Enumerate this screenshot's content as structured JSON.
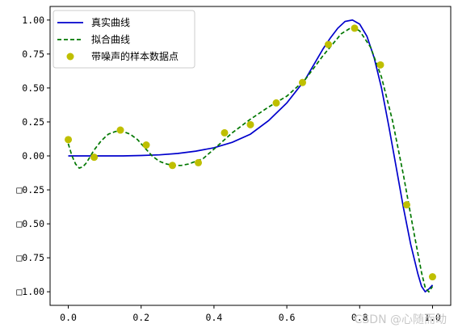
{
  "chart_data": {
    "type": "line",
    "title": "",
    "xlabel": "",
    "ylabel": "",
    "xlim": [
      -0.05,
      1.05
    ],
    "ylim": [
      -1.1,
      1.1
    ],
    "grid": false,
    "legend_position": "top-left",
    "x_ticks": [
      {
        "value": 0.0,
        "label": "0.0"
      },
      {
        "value": 0.2,
        "label": "0.2"
      },
      {
        "value": 0.4,
        "label": "0.4"
      },
      {
        "value": 0.6,
        "label": "0.6"
      },
      {
        "value": 0.8,
        "label": "0.8"
      },
      {
        "value": 1.0,
        "label": "1.0"
      }
    ],
    "y_ticks": [
      {
        "value": 1.0,
        "label": "1.00"
      },
      {
        "value": 0.75,
        "label": "0.75"
      },
      {
        "value": 0.5,
        "label": "0.50"
      },
      {
        "value": 0.25,
        "label": "0.25"
      },
      {
        "value": 0.0,
        "label": "0.00"
      },
      {
        "value": -0.25,
        "label": "□0.25"
      },
      {
        "value": -0.5,
        "label": "□0.50"
      },
      {
        "value": -0.75,
        "label": "□0.75"
      },
      {
        "value": -1.0,
        "label": "□1.00"
      }
    ],
    "series": [
      {
        "name": "真实曲线",
        "kind": "line",
        "style": "solid",
        "color": "#0000cc",
        "x": [
          0.0,
          0.05,
          0.1,
          0.15,
          0.2,
          0.25,
          0.3,
          0.35,
          0.4,
          0.45,
          0.5,
          0.55,
          0.6,
          0.65,
          0.7,
          0.72,
          0.74,
          0.76,
          0.78,
          0.8,
          0.82,
          0.84,
          0.86,
          0.88,
          0.9,
          0.92,
          0.94,
          0.96,
          0.97,
          0.98,
          0.99,
          1.0
        ],
        "y": [
          0.0,
          0.0,
          0.0,
          0.0,
          0.003,
          0.008,
          0.018,
          0.035,
          0.06,
          0.1,
          0.16,
          0.26,
          0.39,
          0.56,
          0.79,
          0.87,
          0.94,
          0.99,
          1.0,
          0.97,
          0.88,
          0.72,
          0.5,
          0.22,
          -0.08,
          -0.38,
          -0.65,
          -0.87,
          -0.96,
          -1.0,
          -0.98,
          -0.95
        ]
      },
      {
        "name": "拟合曲线",
        "kind": "line",
        "style": "dashed",
        "color": "#007700",
        "x": [
          0.0,
          0.01,
          0.02,
          0.03,
          0.04,
          0.05,
          0.07,
          0.09,
          0.11,
          0.13,
          0.15,
          0.17,
          0.19,
          0.21,
          0.23,
          0.25,
          0.27,
          0.29,
          0.31,
          0.33,
          0.35,
          0.37,
          0.4,
          0.45,
          0.5,
          0.55,
          0.6,
          0.65,
          0.7,
          0.75,
          0.78,
          0.8,
          0.83,
          0.86,
          0.89,
          0.92,
          0.95,
          0.97,
          0.98,
          0.99,
          1.0
        ],
        "y": [
          0.09,
          0.0,
          -0.06,
          -0.09,
          -0.08,
          -0.05,
          0.04,
          0.11,
          0.16,
          0.18,
          0.18,
          0.16,
          0.12,
          0.06,
          0.0,
          -0.04,
          -0.06,
          -0.07,
          -0.07,
          -0.06,
          -0.04,
          -0.02,
          0.05,
          0.17,
          0.27,
          0.36,
          0.44,
          0.56,
          0.74,
          0.9,
          0.95,
          0.92,
          0.8,
          0.58,
          0.26,
          -0.14,
          -0.58,
          -0.86,
          -0.97,
          -1.0,
          -0.96
        ]
      },
      {
        "name": "带噪声的样本数据点",
        "kind": "scatter",
        "color": "#bfbf00",
        "x": [
          0.0,
          0.071,
          0.143,
          0.214,
          0.286,
          0.357,
          0.429,
          0.5,
          0.571,
          0.643,
          0.714,
          0.786,
          0.857,
          0.929,
          1.0
        ],
        "y": [
          0.12,
          -0.01,
          0.19,
          0.08,
          -0.07,
          -0.05,
          0.17,
          0.23,
          0.39,
          0.54,
          0.82,
          0.94,
          0.67,
          -0.36,
          -0.89
        ]
      }
    ],
    "watermark": "CSDN @心随而动"
  }
}
